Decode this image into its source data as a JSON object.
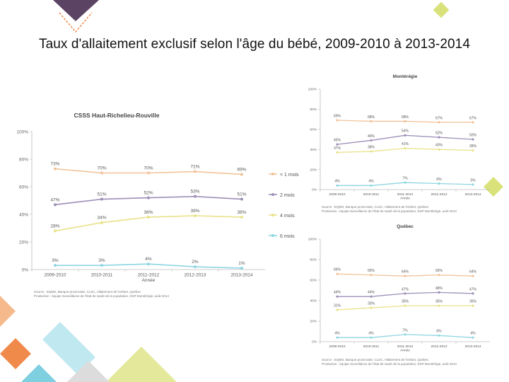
{
  "slide": {
    "title": "Taux d'allaitement exclusif selon l'âge du bébé, 2009-2010 à 2013-2014"
  },
  "colors": {
    "series_1mois": "#f2c39a",
    "series_2mois": "#9d8fb8",
    "series_4mois": "#e9e28a",
    "series_6mois": "#8ed6e2",
    "deco_purple": "#5b4363",
    "deco_yellow": "#d9e27a",
    "deco_orange": "#ef8a4a",
    "deco_blue": "#7ecfe0"
  },
  "chart_data": [
    {
      "id": "csss",
      "type": "line",
      "title": "CSSS Haut-Richelieu-Rouville",
      "xlabel": "Année",
      "ylabel": "",
      "categories": [
        "2009-2010",
        "2010-2011",
        "2011-2012",
        "2012-2013",
        "2013-2014"
      ],
      "ylim": [
        0,
        100
      ],
      "y_ticks": [
        "0%",
        "20%",
        "40%",
        "60%",
        "80%",
        "100%"
      ],
      "legend_position": "right",
      "series": [
        {
          "name": "< 1 mois",
          "values": [
            73,
            70,
            70,
            71,
            69
          ],
          "labels": [
            "73%",
            "70%",
            "70%",
            "71%",
            "69%"
          ]
        },
        {
          "name": "2 mois",
          "values": [
            47,
            51,
            52,
            53,
            51
          ],
          "labels": [
            "47%",
            "51%",
            "52%",
            "53%",
            "51%"
          ]
        },
        {
          "name": "4 mois",
          "values": [
            28,
            34,
            38,
            39,
            38
          ],
          "labels": [
            "28%",
            "34%",
            "38%",
            "39%",
            "38%"
          ]
        },
        {
          "name": "6 mois",
          "values": [
            3,
            3,
            4,
            2,
            1
          ],
          "labels": [
            "3%",
            "3%",
            "4%",
            "2%",
            "1%"
          ]
        }
      ],
      "source": [
        "Source : EQMS, Banque provinciale, CLSC, Allaitement de l'enfant, Québec",
        "Production : équipe Surveillance de l'état de santé de la population, DSP Montérégie, août 2014"
      ]
    },
    {
      "id": "monteregie",
      "type": "line",
      "title": "Montérégie",
      "xlabel": "Année",
      "ylabel": "",
      "categories": [
        "2009-2010",
        "2010-2011",
        "2011-2012",
        "2012-2013",
        "2013-2014"
      ],
      "ylim": [
        0,
        100
      ],
      "y_ticks": [
        "0%",
        "20%",
        "40%",
        "60%",
        "80%",
        "100%"
      ],
      "series": [
        {
          "name": "< 1 mois",
          "values": [
            69,
            68,
            68,
            67,
            67
          ],
          "labels": [
            "69%",
            "68%",
            "68%",
            "67%",
            "67%"
          ]
        },
        {
          "name": "2 mois",
          "values": [
            45,
            49,
            54,
            52,
            50
          ],
          "labels": [
            "45%",
            "49%",
            "54%",
            "52%",
            "50%"
          ]
        },
        {
          "name": "4 mois",
          "values": [
            37,
            38,
            41,
            40,
            39
          ],
          "labels": [
            "37%",
            "38%",
            "41%",
            "40%",
            "39%"
          ]
        },
        {
          "name": "6 mois",
          "values": [
            4,
            4,
            7,
            6,
            5
          ],
          "labels": [
            "4%",
            "4%",
            "7%",
            "6%",
            "5%"
          ]
        }
      ],
      "source": [
        "Source : EQMS, Banque provinciale, CLSC, Allaitement de l'enfant, Québec",
        "Production : équipe Surveillance de l'état de santé de la population, DSP Montérégie, août 2014"
      ]
    },
    {
      "id": "quebec",
      "type": "line",
      "title": "Québec",
      "xlabel": "Année",
      "ylabel": "",
      "categories": [
        "2009-2010",
        "2010-2011",
        "2011-2012",
        "2012-2013",
        "2013-2014"
      ],
      "ylim": [
        0,
        100
      ],
      "y_ticks": [
        "0%",
        "20%",
        "40%",
        "60%",
        "80%",
        "100%"
      ],
      "series": [
        {
          "name": "< 1 mois",
          "values": [
            66,
            65,
            64,
            65,
            64
          ],
          "labels": [
            "66%",
            "65%",
            "64%",
            "65%",
            "64%"
          ]
        },
        {
          "name": "2 mois",
          "values": [
            44,
            44,
            47,
            48,
            47
          ],
          "labels": [
            "44%",
            "44%",
            "47%",
            "48%",
            "47%"
          ]
        },
        {
          "name": "4 mois",
          "values": [
            31,
            33,
            35,
            35,
            35
          ],
          "labels": [
            "31%",
            "33%",
            "35%",
            "35%",
            "35%"
          ]
        },
        {
          "name": "6 mois",
          "values": [
            4,
            4,
            7,
            6,
            4
          ],
          "labels": [
            "4%",
            "4%",
            "7%",
            "6%",
            "4%"
          ]
        }
      ],
      "source": [
        "Source : EQMS, Banque provinciale, CLSC, Allaitement de l'enfant, Québec",
        "Production : équipe Surveillance de l'état de santé de la population, DSP Montérégie, août 2014"
      ]
    }
  ]
}
